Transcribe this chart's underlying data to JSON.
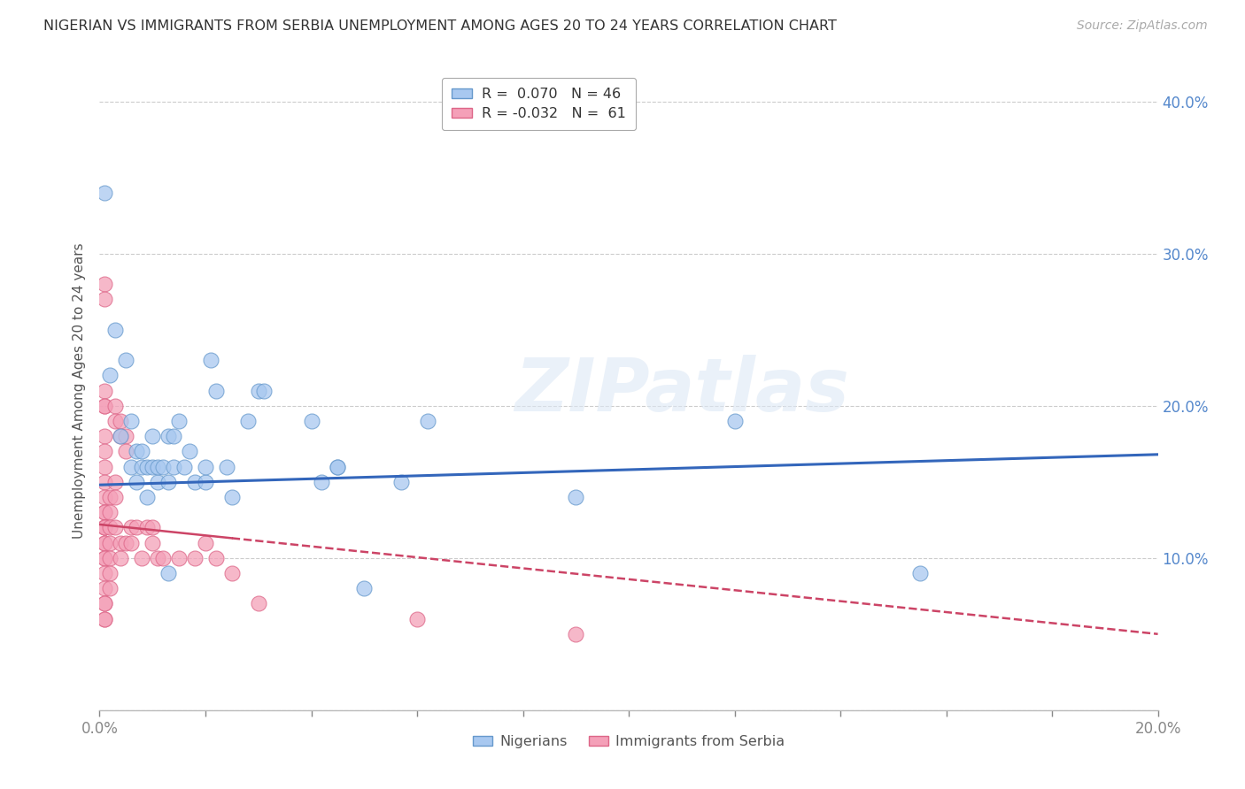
{
  "title": "NIGERIAN VS IMMIGRANTS FROM SERBIA UNEMPLOYMENT AMONG AGES 20 TO 24 YEARS CORRELATION CHART",
  "source": "Source: ZipAtlas.com",
  "ylabel": "Unemployment Among Ages 20 to 24 years",
  "xlim": [
    0.0,
    0.2
  ],
  "ylim": [
    0.0,
    0.42
  ],
  "xticks": [
    0.0,
    0.02,
    0.04,
    0.06,
    0.08,
    0.1,
    0.12,
    0.14,
    0.16,
    0.18,
    0.2
  ],
  "yticks": [
    0.0,
    0.1,
    0.2,
    0.3,
    0.4
  ],
  "yticklabels_right": [
    "",
    "10.0%",
    "20.0%",
    "30.0%",
    "40.0%"
  ],
  "blue_color": "#a8c8f0",
  "pink_color": "#f4a0b8",
  "blue_edge_color": "#6699cc",
  "pink_edge_color": "#dd6688",
  "trend_blue_color": "#3366bb",
  "trend_pink_color": "#cc4466",
  "watermark": "ZIPatlas",
  "blue_data": [
    [
      0.001,
      0.34
    ],
    [
      0.003,
      0.25
    ],
    [
      0.002,
      0.22
    ],
    [
      0.005,
      0.23
    ],
    [
      0.006,
      0.19
    ],
    [
      0.004,
      0.18
    ],
    [
      0.006,
      0.16
    ],
    [
      0.007,
      0.17
    ],
    [
      0.007,
      0.15
    ],
    [
      0.008,
      0.17
    ],
    [
      0.008,
      0.16
    ],
    [
      0.009,
      0.14
    ],
    [
      0.009,
      0.16
    ],
    [
      0.01,
      0.16
    ],
    [
      0.01,
      0.18
    ],
    [
      0.011,
      0.15
    ],
    [
      0.011,
      0.16
    ],
    [
      0.012,
      0.16
    ],
    [
      0.013,
      0.18
    ],
    [
      0.013,
      0.15
    ],
    [
      0.013,
      0.09
    ],
    [
      0.014,
      0.16
    ],
    [
      0.014,
      0.18
    ],
    [
      0.015,
      0.19
    ],
    [
      0.016,
      0.16
    ],
    [
      0.017,
      0.17
    ],
    [
      0.018,
      0.15
    ],
    [
      0.02,
      0.15
    ],
    [
      0.02,
      0.16
    ],
    [
      0.021,
      0.23
    ],
    [
      0.022,
      0.21
    ],
    [
      0.024,
      0.16
    ],
    [
      0.025,
      0.14
    ],
    [
      0.028,
      0.19
    ],
    [
      0.03,
      0.21
    ],
    [
      0.031,
      0.21
    ],
    [
      0.04,
      0.19
    ],
    [
      0.042,
      0.15
    ],
    [
      0.045,
      0.16
    ],
    [
      0.045,
      0.16
    ],
    [
      0.05,
      0.08
    ],
    [
      0.057,
      0.15
    ],
    [
      0.062,
      0.19
    ],
    [
      0.09,
      0.14
    ],
    [
      0.12,
      0.19
    ],
    [
      0.155,
      0.09
    ]
  ],
  "pink_data": [
    [
      0.001,
      0.28
    ],
    [
      0.001,
      0.27
    ],
    [
      0.001,
      0.21
    ],
    [
      0.001,
      0.2
    ],
    [
      0.001,
      0.2
    ],
    [
      0.001,
      0.18
    ],
    [
      0.001,
      0.17
    ],
    [
      0.001,
      0.16
    ],
    [
      0.001,
      0.15
    ],
    [
      0.001,
      0.14
    ],
    [
      0.001,
      0.13
    ],
    [
      0.001,
      0.13
    ],
    [
      0.001,
      0.12
    ],
    [
      0.001,
      0.12
    ],
    [
      0.001,
      0.12
    ],
    [
      0.001,
      0.11
    ],
    [
      0.001,
      0.11
    ],
    [
      0.001,
      0.1
    ],
    [
      0.001,
      0.1
    ],
    [
      0.001,
      0.09
    ],
    [
      0.001,
      0.08
    ],
    [
      0.001,
      0.07
    ],
    [
      0.001,
      0.07
    ],
    [
      0.001,
      0.06
    ],
    [
      0.001,
      0.06
    ],
    [
      0.002,
      0.14
    ],
    [
      0.002,
      0.13
    ],
    [
      0.002,
      0.12
    ],
    [
      0.002,
      0.11
    ],
    [
      0.002,
      0.1
    ],
    [
      0.002,
      0.09
    ],
    [
      0.002,
      0.08
    ],
    [
      0.003,
      0.2
    ],
    [
      0.003,
      0.19
    ],
    [
      0.003,
      0.15
    ],
    [
      0.003,
      0.14
    ],
    [
      0.003,
      0.12
    ],
    [
      0.004,
      0.19
    ],
    [
      0.004,
      0.18
    ],
    [
      0.004,
      0.11
    ],
    [
      0.004,
      0.1
    ],
    [
      0.005,
      0.18
    ],
    [
      0.005,
      0.17
    ],
    [
      0.005,
      0.11
    ],
    [
      0.006,
      0.12
    ],
    [
      0.006,
      0.11
    ],
    [
      0.007,
      0.12
    ],
    [
      0.008,
      0.1
    ],
    [
      0.009,
      0.12
    ],
    [
      0.01,
      0.12
    ],
    [
      0.01,
      0.11
    ],
    [
      0.011,
      0.1
    ],
    [
      0.012,
      0.1
    ],
    [
      0.015,
      0.1
    ],
    [
      0.018,
      0.1
    ],
    [
      0.02,
      0.11
    ],
    [
      0.022,
      0.1
    ],
    [
      0.025,
      0.09
    ],
    [
      0.03,
      0.07
    ],
    [
      0.06,
      0.06
    ],
    [
      0.09,
      0.05
    ]
  ],
  "trend_blue_intercept": 0.148,
  "trend_blue_slope": 0.1,
  "trend_pink_intercept": 0.122,
  "trend_pink_slope": -0.36,
  "figsize": [
    14.06,
    8.92
  ],
  "dpi": 100
}
